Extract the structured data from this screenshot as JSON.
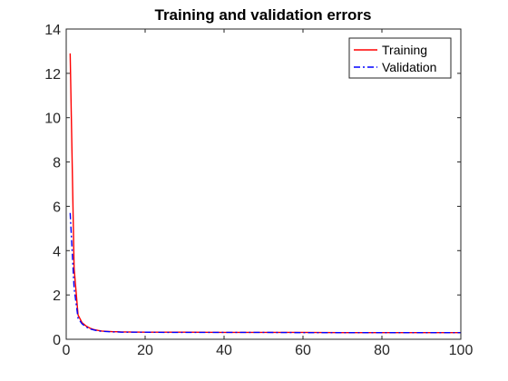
{
  "chart_data": {
    "type": "line",
    "title": "Training and validation errors",
    "xlabel": "",
    "ylabel": "",
    "xlim": [
      0,
      100
    ],
    "ylim": [
      0,
      14
    ],
    "xticks": [
      0,
      20,
      40,
      60,
      80,
      100
    ],
    "yticks": [
      0,
      2,
      4,
      6,
      8,
      10,
      12,
      14
    ],
    "grid": false,
    "legend_position": "top-right",
    "x": [
      1,
      2,
      3,
      4,
      5,
      6,
      7,
      8,
      9,
      10,
      11,
      12,
      13,
      14,
      15,
      20,
      25,
      30,
      40,
      50,
      60,
      70,
      80,
      90,
      100
    ],
    "series": [
      {
        "name": "Training",
        "color": "#ff0000",
        "line_style": "solid",
        "values": [
          12.9,
          3.2,
          1.1,
          0.75,
          0.6,
          0.5,
          0.44,
          0.4,
          0.37,
          0.36,
          0.35,
          0.34,
          0.34,
          0.33,
          0.33,
          0.32,
          0.32,
          0.32,
          0.31,
          0.31,
          0.31,
          0.3,
          0.3,
          0.3,
          0.3
        ]
      },
      {
        "name": "Validation",
        "color": "#0000ff",
        "line_style": "dash-dot",
        "values": [
          5.7,
          2.3,
          0.95,
          0.7,
          0.56,
          0.47,
          0.42,
          0.38,
          0.36,
          0.35,
          0.34,
          0.33,
          0.33,
          0.32,
          0.32,
          0.32,
          0.31,
          0.31,
          0.31,
          0.31,
          0.3,
          0.3,
          0.3,
          0.3,
          0.3
        ]
      }
    ]
  }
}
